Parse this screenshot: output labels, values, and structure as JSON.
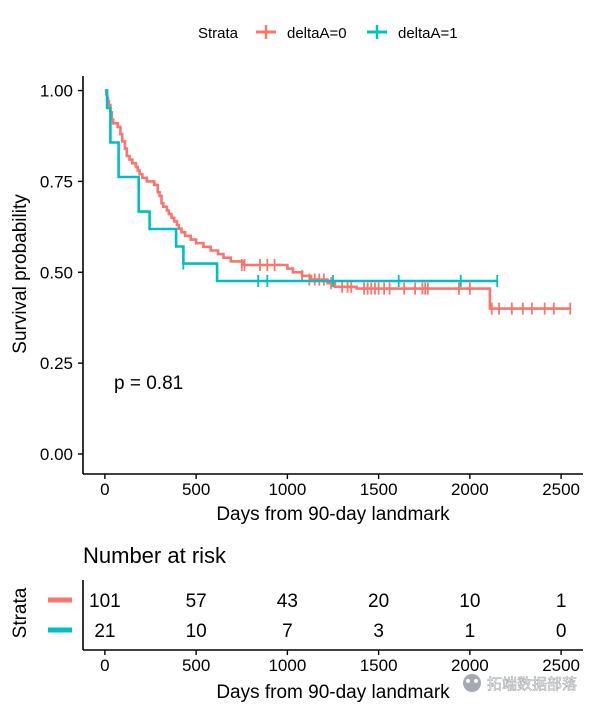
{
  "legend": {
    "title": "Strata",
    "items": [
      {
        "label": "deltaA=0",
        "color": "#F8766D"
      },
      {
        "label": "deltaA=1",
        "color": "#00BFC4"
      }
    ]
  },
  "annotation": "p = 0.81",
  "risk_table": {
    "title": "Number at risk",
    "ylabel": "Strata",
    "xlabel": "Days from 90-day landmark",
    "rows": [
      {
        "color": "#F8766D",
        "values": [
          "101",
          "57",
          "43",
          "20",
          "10",
          "1"
        ]
      },
      {
        "color": "#00BFC4",
        "values": [
          "21",
          "10",
          "7",
          "3",
          "1",
          "0"
        ]
      }
    ]
  },
  "watermark": "拓端数据部落",
  "chart_data": {
    "type": "line",
    "title": "",
    "xlabel": "Days from 90-day landmark",
    "ylabel": "Survival probability",
    "xlim": [
      -120,
      2620
    ],
    "ylim": [
      -0.055,
      1.04
    ],
    "xticks": [
      0,
      500,
      1000,
      1500,
      2000,
      2500
    ],
    "xtick_labels": [
      "0",
      "500",
      "1000",
      "1500",
      "2000",
      "2500"
    ],
    "yticks": [
      0,
      0.25,
      0.5,
      0.75,
      1.0
    ],
    "ytick_labels": [
      "0.00",
      "0.25",
      "0.50",
      "0.75",
      "1.00"
    ],
    "grid": false,
    "legend_position": "top",
    "series": [
      {
        "name": "deltaA=0",
        "color": "#F8766D",
        "steps": [
          [
            0,
            1.0
          ],
          [
            7,
            0.99
          ],
          [
            12,
            0.98
          ],
          [
            17,
            0.97
          ],
          [
            22,
            0.96
          ],
          [
            30,
            0.94
          ],
          [
            38,
            0.92
          ],
          [
            45,
            0.91
          ],
          [
            70,
            0.9
          ],
          [
            85,
            0.88
          ],
          [
            95,
            0.86
          ],
          [
            110,
            0.84
          ],
          [
            120,
            0.82
          ],
          [
            135,
            0.81
          ],
          [
            150,
            0.8
          ],
          [
            170,
            0.79
          ],
          [
            180,
            0.78
          ],
          [
            190,
            0.77
          ],
          [
            205,
            0.76
          ],
          [
            230,
            0.75
          ],
          [
            270,
            0.74
          ],
          [
            290,
            0.72
          ],
          [
            300,
            0.71
          ],
          [
            310,
            0.69
          ],
          [
            320,
            0.68
          ],
          [
            340,
            0.67
          ],
          [
            350,
            0.66
          ],
          [
            365,
            0.65
          ],
          [
            380,
            0.64
          ],
          [
            395,
            0.63
          ],
          [
            405,
            0.62
          ],
          [
            420,
            0.61
          ],
          [
            440,
            0.6
          ],
          [
            470,
            0.59
          ],
          [
            500,
            0.58
          ],
          [
            540,
            0.57
          ],
          [
            580,
            0.56
          ],
          [
            620,
            0.55
          ],
          [
            650,
            0.54
          ],
          [
            690,
            0.53
          ],
          [
            760,
            0.52
          ],
          [
            1000,
            0.51
          ],
          [
            1030,
            0.5
          ],
          [
            1080,
            0.49
          ],
          [
            1130,
            0.48
          ],
          [
            1220,
            0.47
          ],
          [
            1260,
            0.46
          ],
          [
            1380,
            0.455
          ],
          [
            2110,
            0.4
          ]
        ],
        "end_x": 2550,
        "censored": [
          [
            750,
            0.52
          ],
          [
            765,
            0.52
          ],
          [
            850,
            0.52
          ],
          [
            890,
            0.52
          ],
          [
            930,
            0.52
          ],
          [
            1080,
            0.49
          ],
          [
            1120,
            0.48
          ],
          [
            1150,
            0.48
          ],
          [
            1175,
            0.48
          ],
          [
            1200,
            0.48
          ],
          [
            1240,
            0.47
          ],
          [
            1300,
            0.46
          ],
          [
            1330,
            0.46
          ],
          [
            1350,
            0.46
          ],
          [
            1420,
            0.455
          ],
          [
            1440,
            0.455
          ],
          [
            1460,
            0.455
          ],
          [
            1480,
            0.455
          ],
          [
            1500,
            0.455
          ],
          [
            1530,
            0.455
          ],
          [
            1560,
            0.455
          ],
          [
            1640,
            0.455
          ],
          [
            1700,
            0.455
          ],
          [
            1740,
            0.455
          ],
          [
            1755,
            0.455
          ],
          [
            1770,
            0.455
          ],
          [
            1940,
            0.455
          ],
          [
            2000,
            0.455
          ],
          [
            2120,
            0.4
          ],
          [
            2160,
            0.4
          ],
          [
            2230,
            0.4
          ],
          [
            2290,
            0.4
          ],
          [
            2340,
            0.4
          ],
          [
            2410,
            0.4
          ],
          [
            2460,
            0.4
          ],
          [
            2550,
            0.4
          ]
        ]
      },
      {
        "name": "deltaA=1",
        "color": "#00BFC4",
        "steps": [
          [
            0,
            1.0
          ],
          [
            12,
            0.952
          ],
          [
            30,
            0.857
          ],
          [
            75,
            0.762
          ],
          [
            185,
            0.667
          ],
          [
            245,
            0.619
          ],
          [
            390,
            0.571
          ],
          [
            430,
            0.524
          ],
          [
            615,
            0.476
          ]
        ],
        "end_x": 2150,
        "censored": [
          [
            430,
            0.524
          ],
          [
            840,
            0.476
          ],
          [
            890,
            0.476
          ],
          [
            1250,
            0.476
          ],
          [
            1610,
            0.476
          ],
          [
            1950,
            0.476
          ],
          [
            2150,
            0.476
          ]
        ]
      }
    ]
  }
}
